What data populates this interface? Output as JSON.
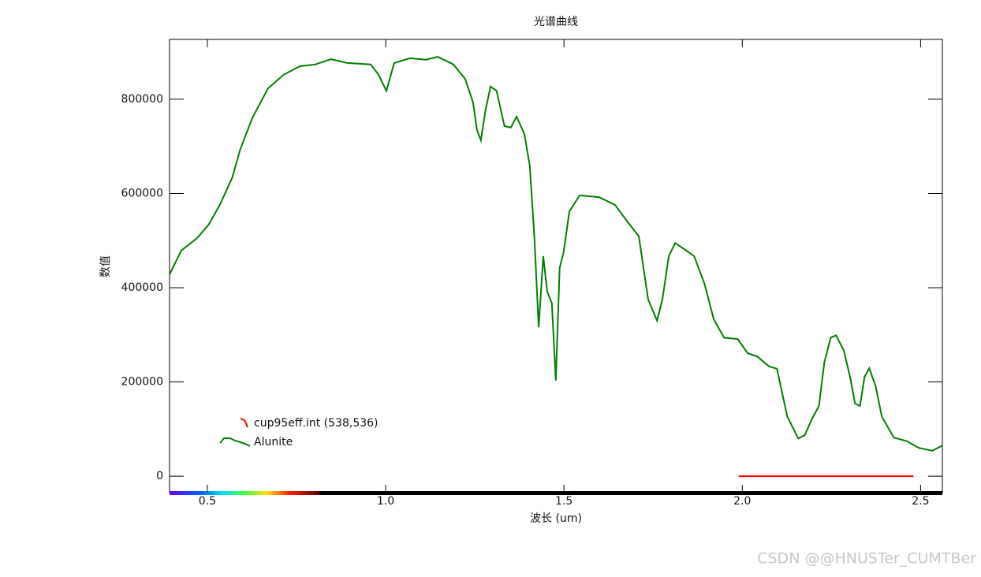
{
  "chart_data": {
    "type": "line",
    "title": "光谱曲线",
    "x_label": "波长 (um)",
    "y_label": "数值",
    "xlim": [
      0.394,
      2.561
    ],
    "ylim": [
      -35000,
      927000
    ],
    "xticks": [
      0.5,
      {
        "value": 1.0,
        "label": "1.0"
      },
      1.5,
      {
        "value": 2.0,
        "label": "2.0"
      },
      2.5
    ],
    "yticks": [
      0,
      200000,
      400000,
      600000,
      800000
    ],
    "series": [
      {
        "name": "cup95eff.int (538,536)",
        "color": "#ff0000",
        "x": [
          1.99,
          2.48
        ],
        "values": [
          0,
          0
        ]
      },
      {
        "name": "Alunite",
        "color": "#007f00",
        "x": [
          0.394,
          0.427,
          0.471,
          0.504,
          0.537,
          0.57,
          0.592,
          0.626,
          0.67,
          0.714,
          0.759,
          0.803,
          0.847,
          0.892,
          0.958,
          0.98,
          1.002,
          1.024,
          1.068,
          1.113,
          1.146,
          1.19,
          1.223,
          1.245,
          1.256,
          1.267,
          1.28,
          1.294,
          1.311,
          1.333,
          1.351,
          1.367,
          1.389,
          1.404,
          1.417,
          1.429,
          1.442,
          1.453,
          1.466,
          1.477,
          1.488,
          1.499,
          1.515,
          1.544,
          1.599,
          1.643,
          1.676,
          1.71,
          1.736,
          1.761,
          1.776,
          1.794,
          1.812,
          1.865,
          1.894,
          1.92,
          1.949,
          1.987,
          2.015,
          2.042,
          2.075,
          2.097,
          2.126,
          2.157,
          2.175,
          2.197,
          2.215,
          2.23,
          2.248,
          2.263,
          2.285,
          2.303,
          2.316,
          2.33,
          2.343,
          2.356,
          2.374,
          2.391,
          2.425,
          2.462,
          2.495,
          2.533,
          2.561
        ],
        "values": [
          428000,
          479000,
          505000,
          534000,
          579000,
          634000,
          693000,
          760000,
          823000,
          852000,
          870000,
          874000,
          885000,
          877000,
          874000,
          852000,
          818000,
          877000,
          887000,
          884000,
          890000,
          874000,
          843000,
          793000,
          735000,
          713000,
          777000,
          827000,
          818000,
          743000,
          740000,
          763000,
          726000,
          659000,
          509000,
          316000,
          467000,
          392000,
          367000,
          203000,
          442000,
          475000,
          562000,
          596000,
          592000,
          576000,
          542000,
          509000,
          375000,
          330000,
          375000,
          467000,
          495000,
          467000,
          408000,
          333000,
          294000,
          291000,
          261000,
          254000,
          233000,
          228000,
          127000,
          80000,
          87000,
          124000,
          149000,
          241000,
          294000,
          299000,
          266000,
          208000,
          154000,
          149000,
          211000,
          229000,
          191000,
          127000,
          82000,
          74000,
          60000,
          54000,
          65000
        ]
      }
    ],
    "watermark": "CSDN @@HNUSTer_CUMTBer"
  }
}
